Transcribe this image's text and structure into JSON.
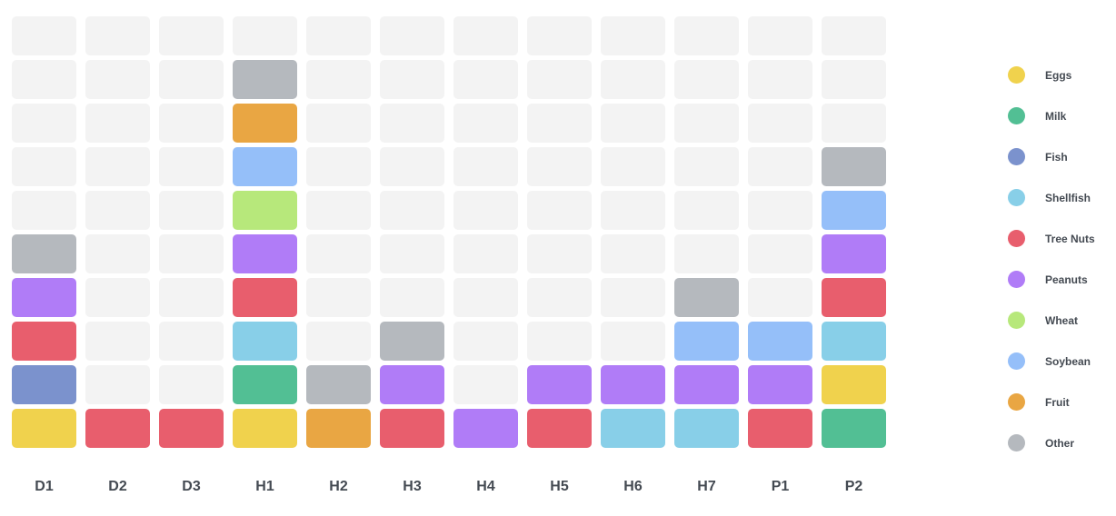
{
  "chart_data": {
    "type": "heatmap",
    "title": "",
    "xlabel": "",
    "ylabel": "",
    "columns": [
      "D1",
      "D2",
      "D3",
      "H1",
      "H2",
      "H3",
      "H4",
      "H5",
      "H6",
      "H7",
      "P1",
      "P2"
    ],
    "rows_per_column": 10,
    "empty_color": "#f3f3f3",
    "categories": [
      {
        "name": "Eggs",
        "color": "#f0d24d"
      },
      {
        "name": "Milk",
        "color": "#52bf94"
      },
      {
        "name": "Fish",
        "color": "#7b92cd"
      },
      {
        "name": "Shellfish",
        "color": "#88cfe8"
      },
      {
        "name": "Tree Nuts",
        "color": "#e85e6d"
      },
      {
        "name": "Peanuts",
        "color": "#b07cf7"
      },
      {
        "name": "Wheat",
        "color": "#b7e87b"
      },
      {
        "name": "Soybean",
        "color": "#95bff9"
      },
      {
        "name": "Fruit",
        "color": "#e9a643"
      },
      {
        "name": "Other",
        "color": "#b5b9be"
      }
    ],
    "stacks": {
      "D1": [
        "Eggs",
        "Fish",
        "Tree Nuts",
        "Peanuts",
        "Other"
      ],
      "D2": [
        "Tree Nuts"
      ],
      "D3": [
        "Tree Nuts"
      ],
      "H1": [
        "Eggs",
        "Milk",
        "Shellfish",
        "Tree Nuts",
        "Peanuts",
        "Wheat",
        "Soybean",
        "Fruit",
        "Other"
      ],
      "H2": [
        "Fruit",
        "Other"
      ],
      "H3": [
        "Tree Nuts",
        "Peanuts",
        "Other"
      ],
      "H4": [
        "Peanuts"
      ],
      "H5": [
        "Tree Nuts",
        "Peanuts"
      ],
      "H6": [
        "Shellfish",
        "Peanuts"
      ],
      "H7": [
        "Shellfish",
        "Peanuts",
        "Soybean",
        "Other"
      ],
      "P1": [
        "Tree Nuts",
        "Peanuts",
        "Soybean"
      ],
      "P2": [
        "Milk",
        "Eggs",
        "Shellfish",
        "Tree Nuts",
        "Peanuts",
        "Soybean",
        "Other"
      ]
    }
  }
}
